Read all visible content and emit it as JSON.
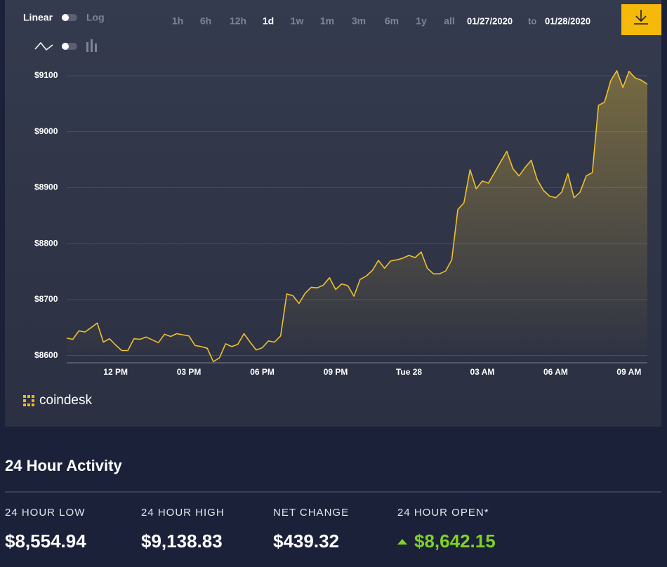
{
  "controls": {
    "scale_linear": "Linear",
    "scale_log": "Log",
    "ranges": [
      "1h",
      "6h",
      "12h",
      "1d",
      "1w",
      "1m",
      "3m",
      "6m",
      "1y",
      "all"
    ],
    "active_range": 3,
    "date_from": "01/27/2020",
    "date_separator": "to",
    "date_to": "01/28/2020"
  },
  "chart_data": {
    "type": "line",
    "color": "#f0c02a",
    "grid": true,
    "area": true,
    "categories": [
      null,
      null,
      null,
      null,
      null,
      null,
      null,
      null,
      "12 PM",
      null,
      null,
      null,
      null,
      null,
      null,
      null,
      null,
      null,
      null,
      null,
      "03 PM",
      null,
      null,
      null,
      null,
      null,
      null,
      null,
      null,
      null,
      null,
      null,
      "06 PM",
      null,
      null,
      null,
      null,
      null,
      null,
      null,
      null,
      null,
      null,
      null,
      "09 PM",
      null,
      null,
      null,
      null,
      null,
      null,
      null,
      null,
      null,
      null,
      null,
      "Tue 28",
      null,
      null,
      null,
      null,
      null,
      null,
      null,
      null,
      null,
      null,
      null,
      "03 AM",
      null,
      null,
      null,
      null,
      null,
      null,
      null,
      null,
      null,
      null,
      null,
      "06 AM",
      null,
      null,
      null,
      null,
      null,
      null,
      null,
      null,
      null,
      null,
      null,
      "09 AM",
      null,
      null,
      null
    ],
    "values": [
      8631,
      8629,
      8644,
      8642,
      8650,
      8658,
      8624,
      8630,
      8619,
      8609,
      8609,
      8630,
      8629,
      8633,
      8628,
      8623,
      8638,
      8634,
      8639,
      8637,
      8635,
      8618,
      8616,
      8613,
      8589,
      8596,
      8621,
      8616,
      8620,
      8639,
      8624,
      8610,
      8614,
      8626,
      8624,
      8635,
      8710,
      8707,
      8693,
      8711,
      8722,
      8721,
      8726,
      8739,
      8718,
      8728,
      8725,
      8706,
      8736,
      8742,
      8752,
      8770,
      8756,
      8769,
      8771,
      8774,
      8779,
      8775,
      8785,
      8756,
      8746,
      8746,
      8751,
      8771,
      8861,
      8873,
      8932,
      8898,
      8912,
      8908,
      8927,
      8946,
      8965,
      8934,
      8921,
      8936,
      8949,
      8914,
      8895,
      8885,
      8882,
      8892,
      8925,
      8882,
      8892,
      8921,
      8927,
      9047,
      9053,
      9091,
      9109,
      9079,
      9108,
      9096,
      9092,
      9085
    ],
    "ylim": [
      8587,
      9120
    ],
    "yticks": [
      {
        "value": 8600,
        "label": "$8600"
      },
      {
        "value": 8700,
        "label": "$8700"
      },
      {
        "value": 8800,
        "label": "$8800"
      },
      {
        "value": 8900,
        "label": "$8900"
      },
      {
        "value": 9000,
        "label": "$9000"
      },
      {
        "value": 9100,
        "label": "$9100"
      }
    ]
  },
  "brand": "coindesk",
  "activity": {
    "title": "24 Hour Activity",
    "stats": [
      {
        "label": "24 HOUR LOW",
        "value": "$8,554.94"
      },
      {
        "label": "24 HOUR HIGH",
        "value": "$9,138.83"
      },
      {
        "label": "NET CHANGE",
        "value": "$439.32"
      },
      {
        "label": "24 HOUR OPEN*",
        "value": "$8,642.15",
        "trend": "up"
      }
    ]
  }
}
